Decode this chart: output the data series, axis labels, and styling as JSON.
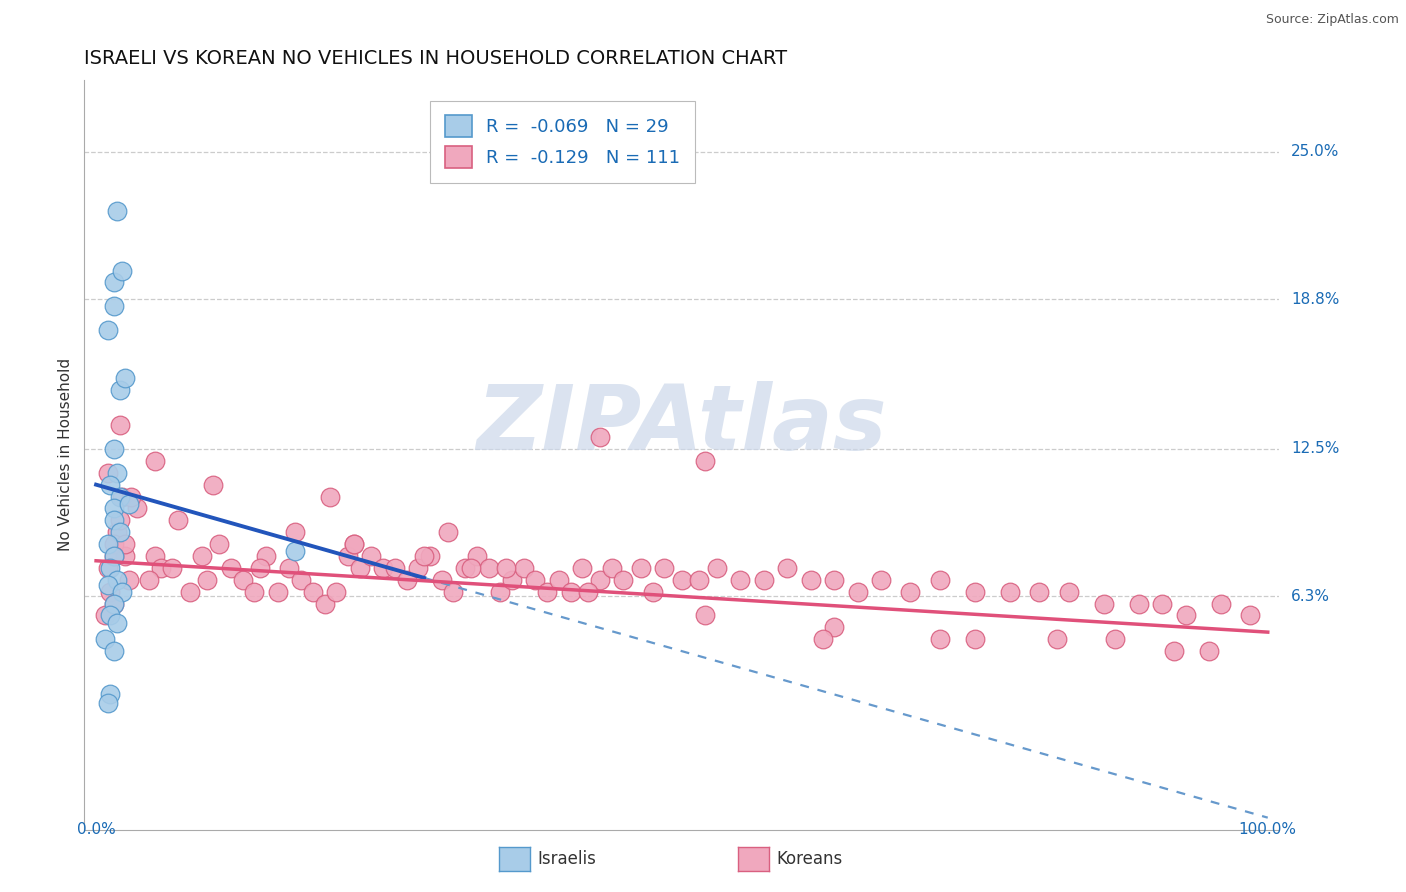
{
  "title": "ISRAELI VS KOREAN NO VEHICLES IN HOUSEHOLD CORRELATION CHART",
  "source_text": "Source: ZipAtlas.com",
  "ylabel": "No Vehicles in Household",
  "xlim": [
    -1,
    101
  ],
  "ylim": [
    -3.5,
    28.0
  ],
  "grid_yticks": [
    6.3,
    12.5,
    18.8,
    25.0
  ],
  "ytick_labels": [
    "6.3%",
    "12.5%",
    "18.8%",
    "25.0%"
  ],
  "grid_color": "#cccccc",
  "background_color": "#ffffff",
  "israeli_color": "#a8cce8",
  "israeli_edge_color": "#5599cc",
  "korean_color": "#f0a8be",
  "korean_edge_color": "#d96080",
  "label_color": "#1a6bb5",
  "israeli_label": "Israelis",
  "korean_label": "Koreans",
  "r_israeli": "-0.069",
  "n_israeli": "29",
  "r_korean": "-0.129",
  "n_korean": "111",
  "title_fontsize": 14,
  "watermark_color": "#ccd8ea",
  "israeli_trend_x0": 0,
  "israeli_trend_y0": 11.0,
  "israeli_trend_x1": 100,
  "israeli_trend_y1": -3.0,
  "israeli_solid_end": 28,
  "korean_trend_x0": 0,
  "korean_trend_y0": 7.8,
  "korean_trend_x1": 100,
  "korean_trend_y1": 4.8,
  "israeli_x": [
    1.5,
    2.2,
    1.8,
    2.0,
    1.0,
    1.5,
    2.5,
    1.5,
    1.8,
    1.2,
    2.0,
    1.5,
    2.8,
    1.5,
    2.0,
    1.0,
    1.5,
    17.0,
    1.2,
    1.8,
    1.0,
    2.2,
    1.5,
    1.2,
    1.8,
    0.8,
    1.5,
    1.2,
    1.0
  ],
  "israeli_y": [
    19.5,
    20.0,
    22.5,
    15.0,
    17.5,
    18.5,
    15.5,
    12.5,
    11.5,
    11.0,
    10.5,
    10.0,
    10.2,
    9.5,
    9.0,
    8.5,
    8.0,
    8.2,
    7.5,
    7.0,
    6.8,
    6.5,
    6.0,
    5.5,
    5.2,
    4.5,
    4.0,
    2.2,
    1.8
  ],
  "korean_x": [
    1.0,
    1.8,
    2.5,
    1.2,
    2.0,
    0.8,
    1.5,
    2.8,
    1.5,
    2.2,
    3.5,
    2.5,
    5.0,
    5.5,
    4.5,
    8.0,
    6.5,
    9.5,
    10.5,
    11.5,
    12.5,
    13.5,
    14.5,
    15.5,
    16.5,
    17.5,
    18.5,
    19.5,
    20.5,
    21.5,
    22.5,
    23.5,
    24.5,
    25.5,
    26.5,
    27.5,
    28.5,
    29.5,
    30.5,
    31.5,
    32.5,
    33.5,
    34.5,
    35.5,
    36.5,
    37.5,
    38.5,
    39.5,
    40.5,
    41.5,
    43.0,
    44.0,
    45.0,
    46.5,
    47.5,
    48.5,
    50.0,
    51.5,
    53.0,
    55.0,
    57.0,
    59.0,
    61.0,
    63.0,
    65.0,
    67.0,
    69.5,
    72.0,
    75.0,
    78.0,
    80.5,
    83.0,
    86.0,
    89.0,
    91.0,
    93.0,
    96.0,
    98.5,
    30.0,
    20.0,
    10.0,
    5.0,
    7.0,
    9.0,
    14.0,
    17.0,
    22.0,
    28.0,
    35.0,
    43.0,
    52.0,
    63.0,
    75.0,
    87.0,
    95.0,
    22.0,
    32.0,
    42.0,
    52.0,
    62.0,
    72.0,
    82.0,
    92.0,
    1.5,
    2.0,
    3.0,
    1.0
  ],
  "korean_y": [
    7.5,
    9.0,
    8.0,
    6.5,
    13.5,
    5.5,
    6.0,
    7.0,
    8.5,
    10.5,
    10.0,
    8.5,
    8.0,
    7.5,
    7.0,
    6.5,
    7.5,
    7.0,
    8.5,
    7.5,
    7.0,
    6.5,
    8.0,
    6.5,
    7.5,
    7.0,
    6.5,
    6.0,
    6.5,
    8.0,
    7.5,
    8.0,
    7.5,
    7.5,
    7.0,
    7.5,
    8.0,
    7.0,
    6.5,
    7.5,
    8.0,
    7.5,
    6.5,
    7.0,
    7.5,
    7.0,
    6.5,
    7.0,
    6.5,
    7.5,
    7.0,
    7.5,
    7.0,
    7.5,
    6.5,
    7.5,
    7.0,
    7.0,
    7.5,
    7.0,
    7.0,
    7.5,
    7.0,
    7.0,
    6.5,
    7.0,
    6.5,
    7.0,
    6.5,
    6.5,
    6.5,
    6.5,
    6.0,
    6.0,
    6.0,
    5.5,
    6.0,
    5.5,
    9.0,
    10.5,
    11.0,
    12.0,
    9.5,
    8.0,
    7.5,
    9.0,
    8.5,
    8.0,
    7.5,
    13.0,
    12.0,
    5.0,
    4.5,
    4.5,
    4.0,
    8.5,
    7.5,
    6.5,
    5.5,
    4.5,
    4.5,
    4.5,
    4.0,
    8.0,
    9.5,
    10.5,
    11.5
  ]
}
